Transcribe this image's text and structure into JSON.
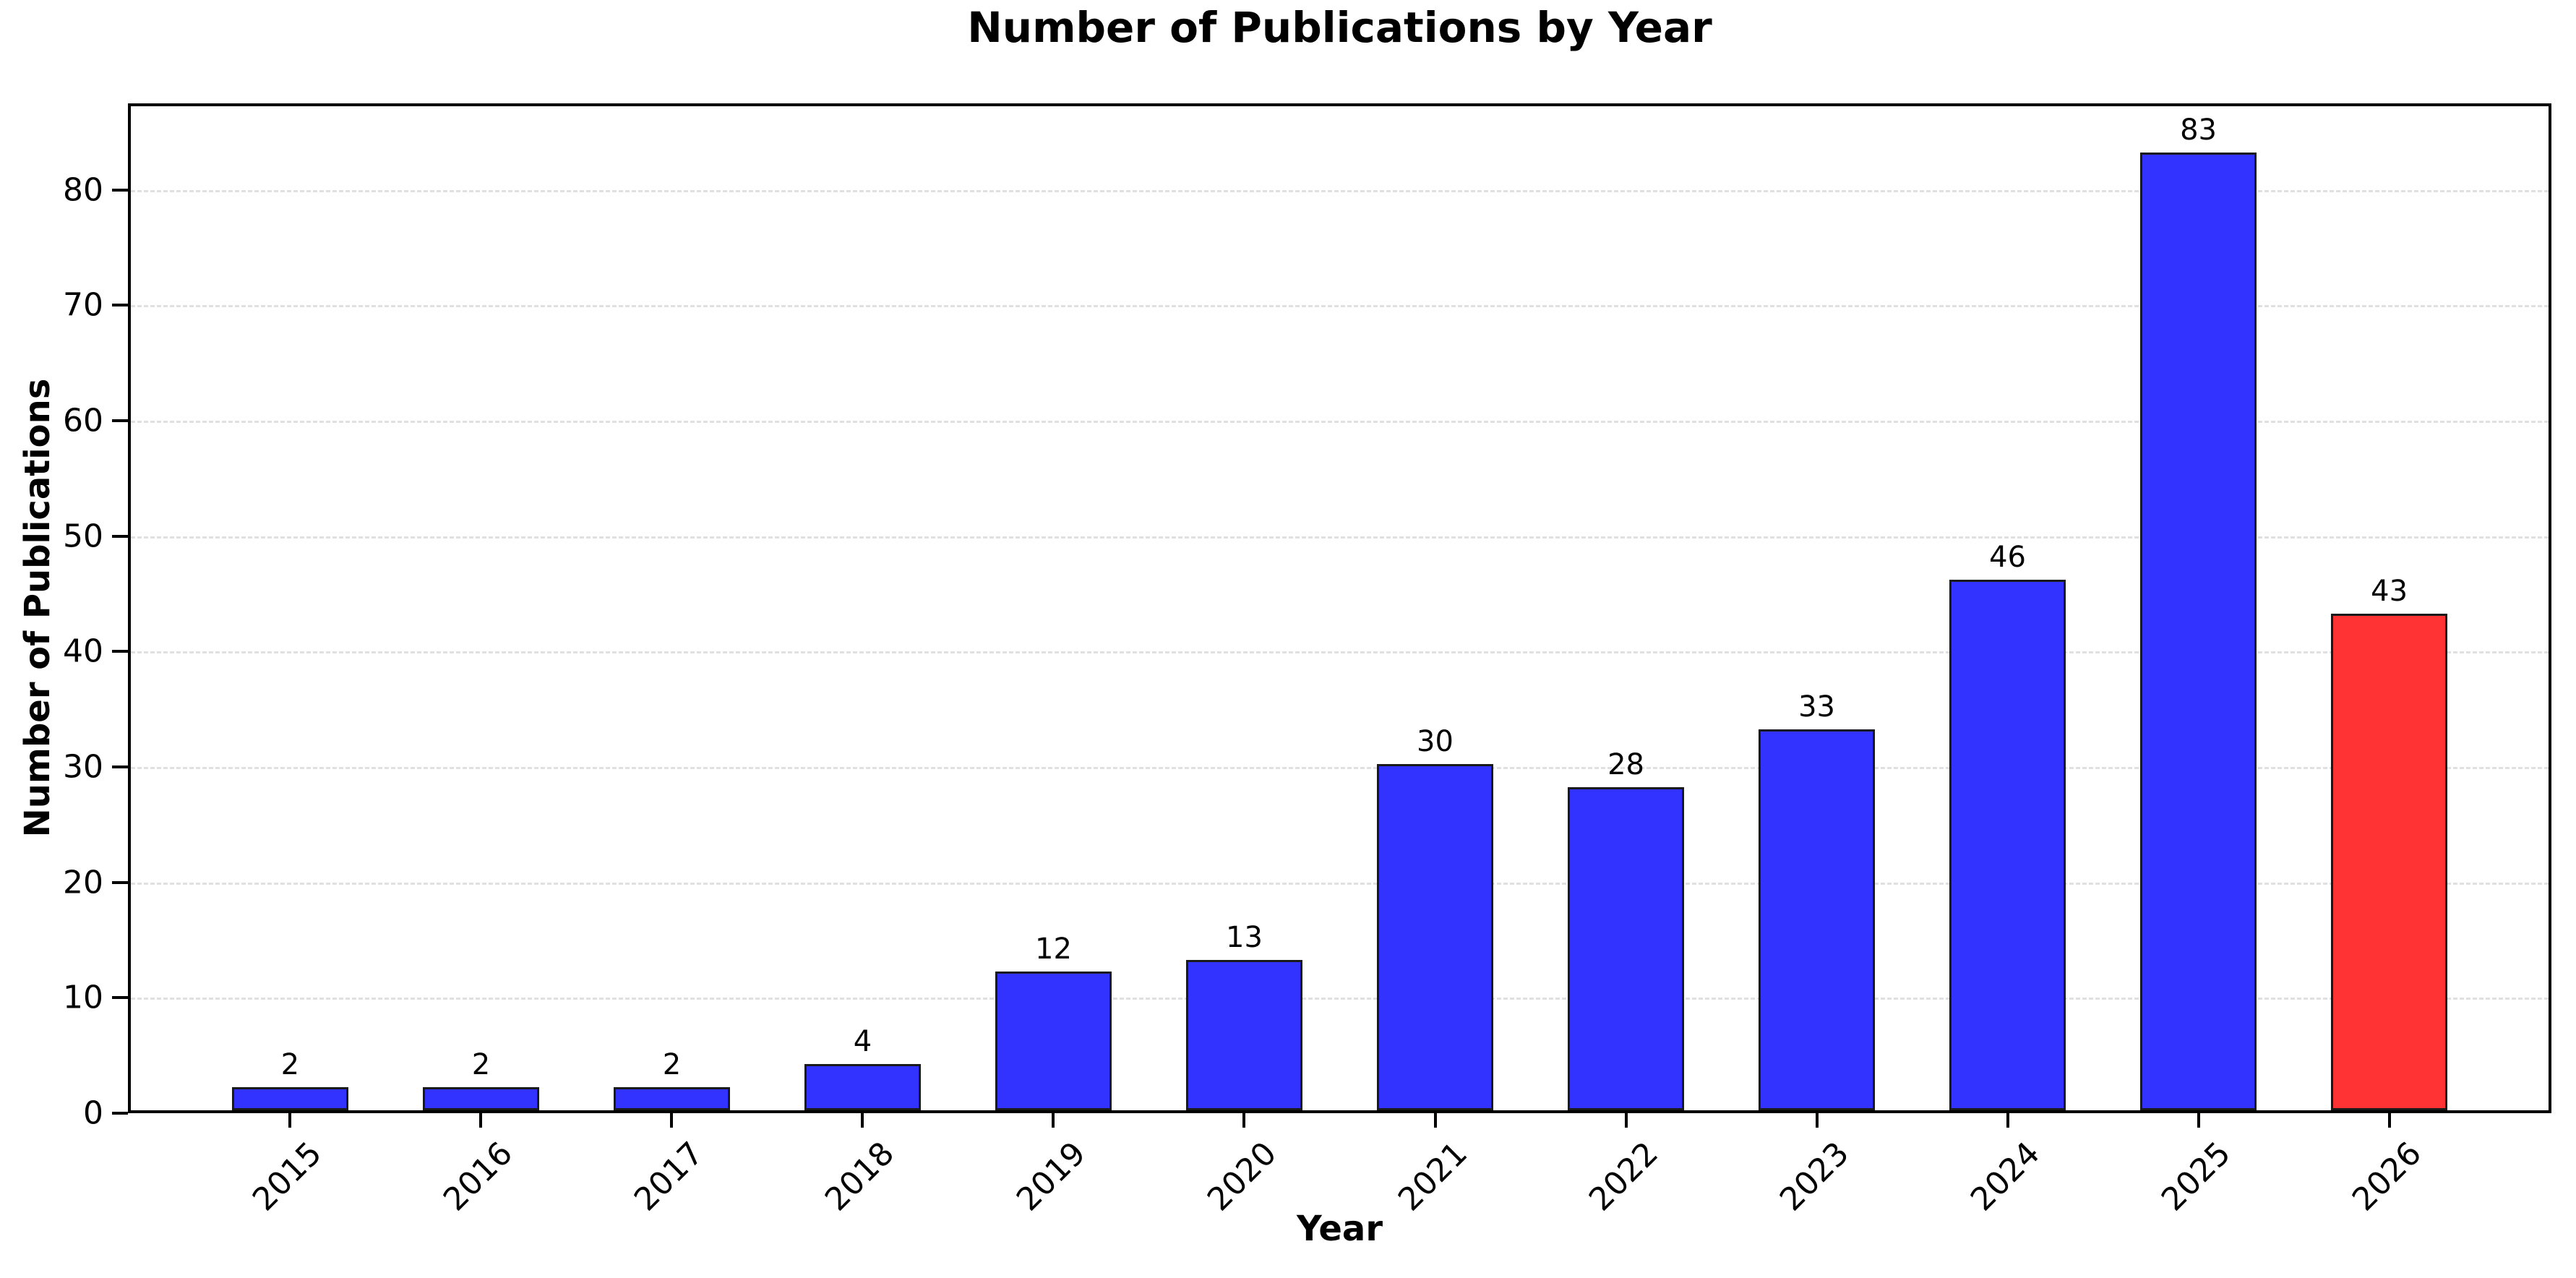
{
  "chart_data": {
    "type": "bar",
    "title": "Number of Publications by Year",
    "xlabel": "Year",
    "ylabel": "Number of Publications",
    "categories": [
      "2015",
      "2016",
      "2017",
      "2018",
      "2019",
      "2020",
      "2021",
      "2022",
      "2023",
      "2024",
      "2025",
      "2026"
    ],
    "values": [
      2,
      2,
      2,
      4,
      12,
      13,
      30,
      28,
      33,
      46,
      83,
      43
    ],
    "value_labels": [
      "2",
      "2",
      "2",
      "4",
      "12",
      "13",
      "30",
      "28",
      "33",
      "46",
      "83",
      "43"
    ],
    "yticks": [
      0,
      10,
      20,
      30,
      40,
      50,
      60,
      70,
      80
    ],
    "ylim": [
      0,
      87.5
    ],
    "grid": {
      "axis": "y",
      "style": "dashed",
      "color": "#e0e0e0",
      "on": true
    },
    "legend": "none",
    "colors": {
      "bar_default": "#3333FF",
      "bar_highlight": "#FF3333",
      "highlight_index": 11,
      "bar_edge": "#1a1a1a",
      "spine": "#000000",
      "text": "#000000",
      "background": "#ffffff"
    }
  }
}
